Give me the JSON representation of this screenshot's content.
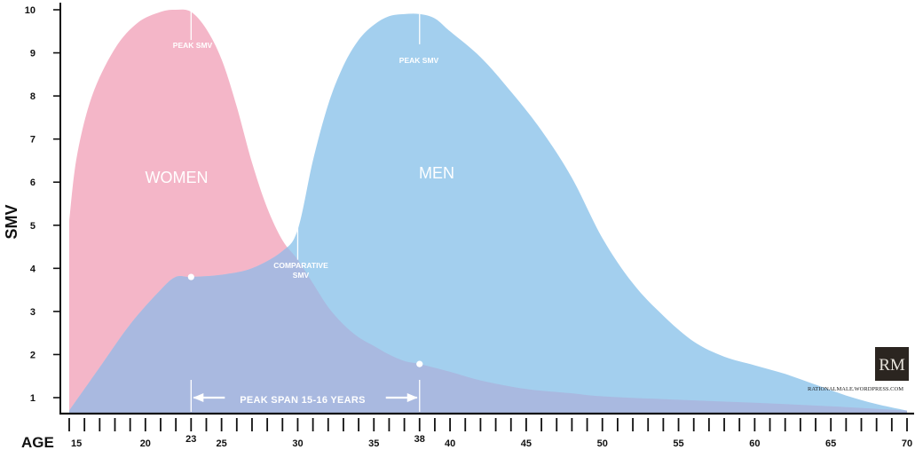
{
  "chart_data": {
    "type": "area",
    "xlabel": "AGE",
    "ylabel": "SMV",
    "xlim": [
      15,
      70
    ],
    "ylim": [
      0.7,
      10
    ],
    "x_ticks": [
      15,
      20,
      23,
      25,
      30,
      35,
      38,
      40,
      45,
      50,
      55,
      60,
      65,
      70
    ],
    "y_ticks": [
      1,
      2,
      3,
      4,
      5,
      6,
      7,
      8,
      9,
      10
    ],
    "grid": false,
    "colors": {
      "women": "#f4b6c8",
      "men": "#a3cfee",
      "overlap": "#a9b9e0"
    },
    "series": [
      {
        "name": "WOMEN",
        "x": [
          15,
          15.5,
          16.5,
          18,
          19.5,
          21,
          22,
          23,
          24,
          25,
          26,
          27,
          28,
          29,
          30,
          31,
          32,
          33,
          34,
          35,
          36,
          37,
          38,
          40,
          42,
          45,
          48,
          50,
          55,
          60,
          65,
          70
        ],
        "y": [
          5.1,
          6.6,
          8.0,
          9.1,
          9.7,
          9.95,
          10.0,
          9.95,
          9.55,
          8.85,
          7.75,
          6.45,
          5.4,
          4.65,
          4.2,
          3.65,
          3.1,
          2.7,
          2.4,
          2.2,
          2.0,
          1.85,
          1.78,
          1.6,
          1.4,
          1.2,
          1.1,
          1.03,
          0.95,
          0.88,
          0.8,
          0.7
        ]
      },
      {
        "name": "MEN",
        "x": [
          15,
          17,
          19,
          21,
          22,
          23,
          25,
          27,
          29,
          30,
          31,
          32,
          33,
          34,
          35,
          36,
          37,
          38,
          39,
          40,
          42,
          44,
          46,
          48,
          50,
          52,
          54,
          56,
          58,
          60,
          62,
          64,
          66,
          68,
          70
        ],
        "y": [
          0.7,
          1.7,
          2.7,
          3.5,
          3.8,
          3.8,
          3.85,
          4.0,
          4.4,
          4.9,
          6.5,
          7.8,
          8.7,
          9.3,
          9.65,
          9.85,
          9.9,
          9.9,
          9.8,
          9.5,
          8.9,
          8.1,
          7.2,
          6.1,
          4.7,
          3.65,
          2.9,
          2.3,
          1.95,
          1.75,
          1.55,
          1.3,
          1.05,
          0.85,
          0.7
        ]
      }
    ],
    "annotations": {
      "women_label": "WOMEN",
      "men_label": "MEN",
      "peak_women": "PEAK SMV",
      "peak_men": "PEAK SMV",
      "comparative_line1": "COMPARATIVE",
      "comparative_line2": "SMV",
      "span_label": "PEAK SPAN 15-16 YEARS"
    },
    "markers": [
      {
        "x": 23,
        "y": 3.8
      },
      {
        "x": 38,
        "y": 1.78
      }
    ],
    "peak_lines": [
      {
        "x": 23,
        "y_from": 9.3,
        "y_to": 10.0
      },
      {
        "x": 38,
        "y_from": 9.2,
        "y_to": 9.9
      }
    ],
    "comparative_line": {
      "x": 30,
      "y_from": 4.2,
      "y_to": 5.0
    },
    "span_arrow": {
      "x_from": 23,
      "x_to": 38,
      "y": 1.0
    }
  },
  "watermark": {
    "logo": "RM",
    "site": "RATIONALMALE.WORDPRESS.COM"
  }
}
